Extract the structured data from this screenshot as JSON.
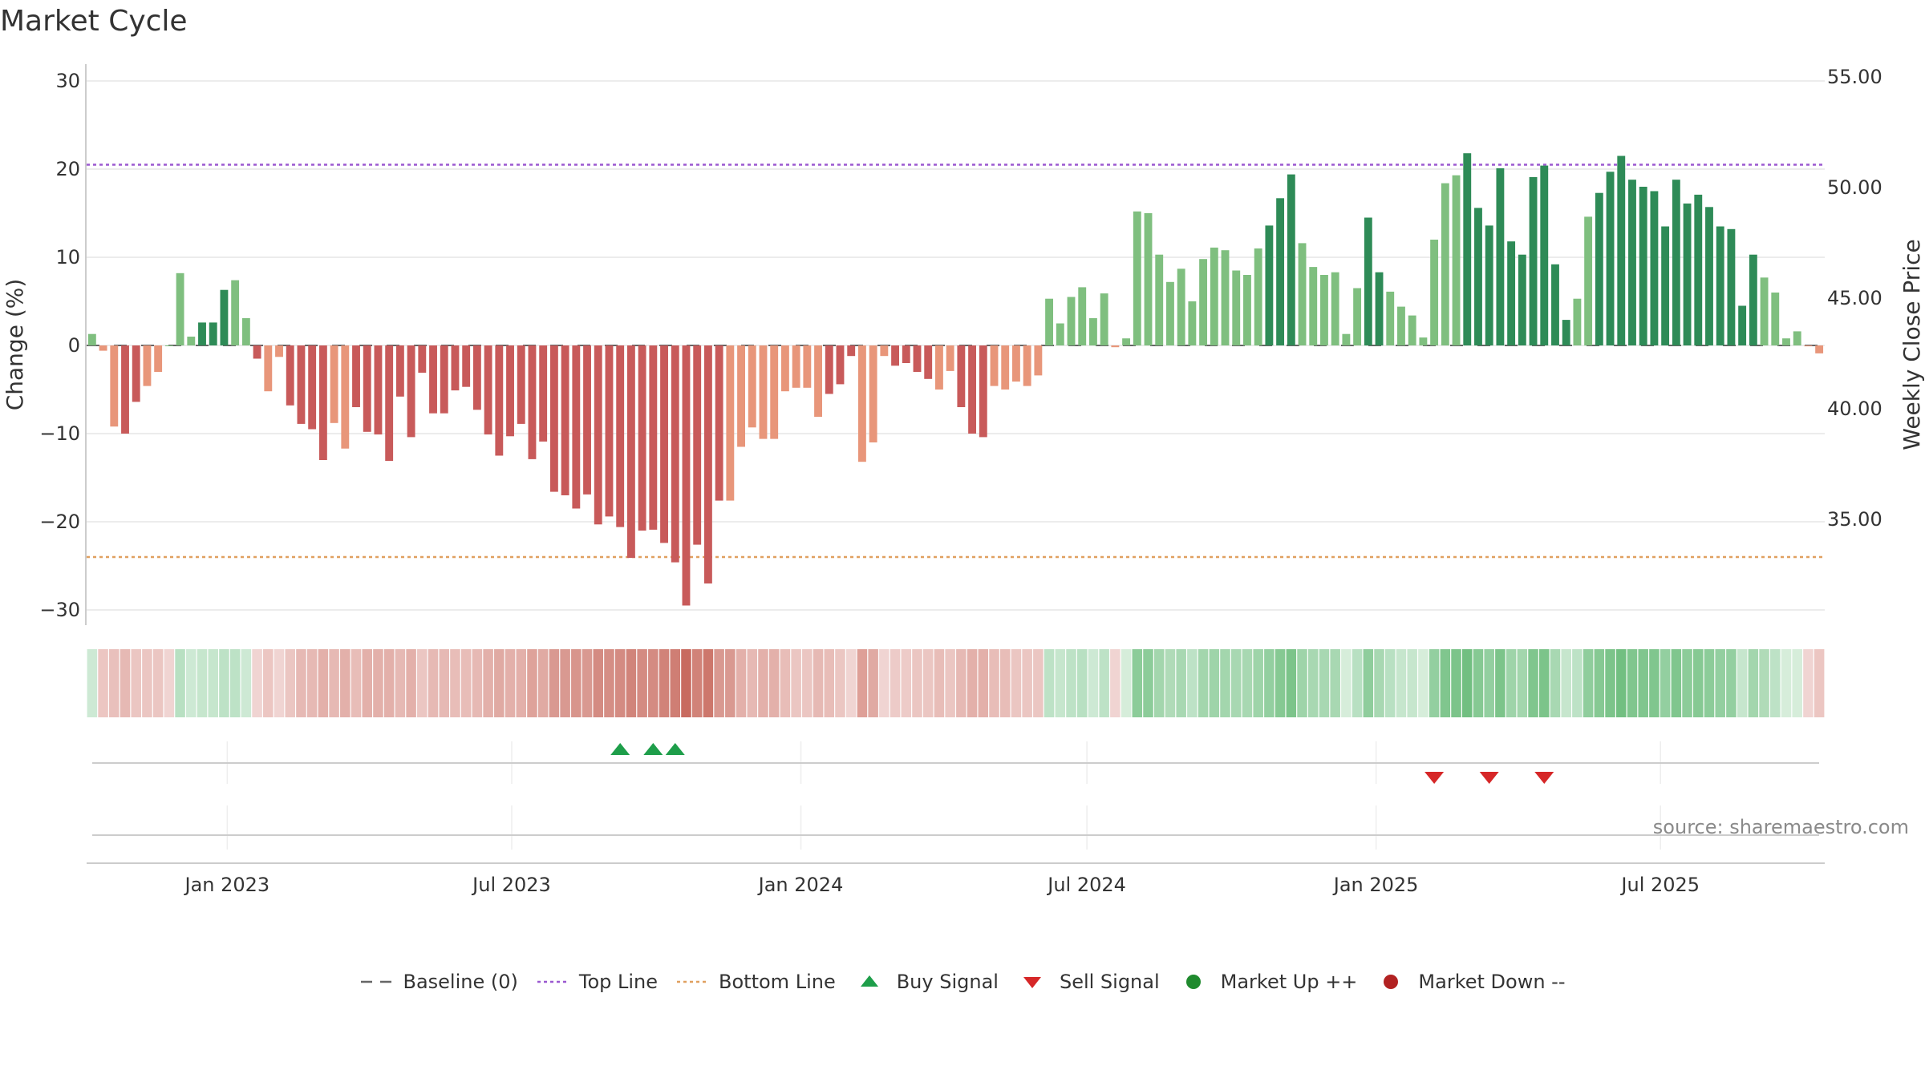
{
  "title": "Market Cycle",
  "source": "source: sharemaestro.com",
  "colors": {
    "up_strong": "#2e8b57",
    "up_light": "#7fbf7f",
    "down_strong": "#c85a5a",
    "down_light": "#e8967a",
    "top_line": "#9b59d0",
    "bottom_line": "#e0a060",
    "buy": "#1e9e4a",
    "sell": "#d62728",
    "market_up": "#1f8a2e",
    "market_down": "#b22222"
  },
  "legend": [
    {
      "label": "Baseline (0)",
      "symbol": "dash-grey"
    },
    {
      "label": "Top Line",
      "symbol": "dot-purple"
    },
    {
      "label": "Bottom Line",
      "symbol": "dot-orange"
    },
    {
      "label": "Buy Signal",
      "symbol": "triangle-up-green"
    },
    {
      "label": "Sell Signal",
      "symbol": "triangle-down-red"
    },
    {
      "label": "Market Up ++",
      "symbol": "circle-green"
    },
    {
      "label": "Market Down --",
      "symbol": "circle-red"
    }
  ],
  "chart_data": {
    "type": "bar",
    "x_start": "2022-10-07",
    "x_step": "weekly",
    "x_ticks": [
      "Jan 2023",
      "Jul 2023",
      "Jan 2024",
      "Jul 2024",
      "Jan 2025",
      "Jul 2025"
    ],
    "ylabel": "Change (%)",
    "y2label": "Weekly Close Price",
    "ylim": [
      -31,
      32
    ],
    "yticks": [
      30,
      20,
      10,
      0,
      -10,
      -20,
      -30
    ],
    "y2ticks": [
      "55.00",
      "50.00",
      "45.00",
      "40.00",
      "35.00"
    ],
    "top_line": 20.5,
    "bottom_line": -24,
    "baseline": 0,
    "values": [
      1.3,
      -0.6,
      -9.2,
      -10,
      -6.4,
      -4.6,
      -3,
      0,
      8.2,
      1,
      2.6,
      2.6,
      6.3,
      7.4,
      3.1,
      -1.5,
      -5.2,
      -1.3,
      -6.8,
      -8.9,
      -9.5,
      -13,
      -8.8,
      -11.7,
      -7,
      -9.8,
      -10.1,
      -13.1,
      -5.8,
      -10.4,
      -3.1,
      -7.7,
      -7.7,
      -5.1,
      -4.7,
      -7.3,
      -10.1,
      -12.5,
      -10.3,
      -8.9,
      -12.9,
      -10.9,
      -16.6,
      -17,
      -18.5,
      -16.9,
      -20.3,
      -19.4,
      -20.6,
      -24.1,
      -21,
      -20.9,
      -22.4,
      -24.6,
      -29.5,
      -22.6,
      -27,
      -17.6,
      -17.6,
      -11.5,
      -9.3,
      -10.6,
      -10.6,
      -5.2,
      -4.8,
      -4.8,
      -8.1,
      -5.5,
      -4.4,
      -1.2,
      -13.2,
      -11,
      -1.2,
      -2.3,
      -2,
      -3,
      -3.8,
      -5,
      -2.9,
      -7,
      -10,
      -10.4,
      -4.6,
      -5,
      -4.1,
      -4.6,
      -3.4,
      5.3,
      2.5,
      5.5,
      6.6,
      3.1,
      5.9,
      -0.2,
      0.8,
      15.2,
      15,
      10.3,
      7.2,
      8.7,
      5,
      9.8,
      11.1,
      10.8,
      8.5,
      8,
      11,
      13.6,
      16.7,
      19.4,
      11.6,
      8.9,
      8,
      8.3,
      1.3,
      6.5,
      14.5,
      8.3,
      6.1,
      4.4,
      3.4,
      0.9,
      12,
      18.4,
      19.3,
      21.8,
      15.6,
      13.6,
      20.1,
      11.8,
      10.3,
      19.1,
      20.4,
      9.2,
      2.9,
      5.3,
      14.6,
      17.3,
      19.7,
      21.5,
      18.8,
      18,
      17.5,
      13.5,
      18.8,
      16.1,
      17.1,
      15.7,
      13.5,
      13.2,
      4.5,
      10.3,
      7.7,
      6,
      0.8,
      1.6,
      -0.1,
      -0.9
    ],
    "shade": [
      2,
      2,
      2,
      3,
      3,
      2,
      2,
      2,
      2,
      2,
      3,
      3,
      3,
      2,
      2,
      3,
      2,
      2,
      3,
      3,
      3,
      3,
      2,
      2,
      3,
      3,
      3,
      3,
      3,
      3,
      3,
      3,
      3,
      3,
      3,
      3,
      3,
      3,
      3,
      3,
      3,
      3,
      3,
      3,
      3,
      3,
      3,
      3,
      3,
      3,
      3,
      3,
      3,
      3,
      3,
      3,
      3,
      3,
      2,
      2,
      2,
      2,
      2,
      2,
      2,
      2,
      2,
      3,
      3,
      3,
      2,
      2,
      2,
      3,
      3,
      3,
      3,
      2,
      2,
      3,
      3,
      3,
      2,
      2,
      2,
      2,
      2,
      2,
      2,
      2,
      2,
      2,
      2,
      2,
      2,
      2,
      2,
      2,
      2,
      2,
      2,
      2,
      2,
      2,
      2,
      2,
      2,
      3,
      3,
      3,
      2,
      2,
      2,
      2,
      2,
      2,
      3,
      3,
      2,
      2,
      2,
      2,
      2,
      2,
      2,
      3,
      3,
      3,
      3,
      3,
      3,
      3,
      3,
      3,
      3,
      2,
      2,
      3,
      3,
      3,
      3,
      3,
      3,
      3,
      3,
      3,
      3,
      3,
      3,
      3,
      3,
      3,
      2,
      2,
      2,
      2,
      2,
      2,
      2,
      2,
      2,
      2,
      2
    ],
    "buy_signal_x": [
      "2023-09-08",
      "2023-09-29",
      "2023-10-13"
    ],
    "sell_signal_x": [
      "2025-02-07",
      "2025-03-14",
      "2025-04-18"
    ],
    "strip_colors": [
      "#cde9d4",
      "#ecc6c2",
      "#e9c0bc",
      "#e6b9b4",
      "#ebc6c2",
      "#ebc6c2",
      "#ebc6c2",
      "#f0d4d2",
      "#b8e0c2",
      "#cde9d4",
      "#c6e6cd",
      "#c6e6cd",
      "#bde2c6",
      "#bde2c6",
      "#cde9d4",
      "#f0d4d2",
      "#ecc6c2",
      "#f0d4d2",
      "#ebc6c2",
      "#e6b9b4",
      "#e6b9b4",
      "#e3b0aa",
      "#e6b9b4",
      "#e3b0aa",
      "#e8bdb8",
      "#e3b0aa",
      "#e3b0aa",
      "#e3b0aa",
      "#e6b9b4",
      "#e3b0aa",
      "#ebc6c2",
      "#e6b9b4",
      "#e6b9b4",
      "#e8bdb8",
      "#e8bdb8",
      "#e6b9b4",
      "#e3b0aa",
      "#e0aaa3",
      "#e3b0aa",
      "#e3b0aa",
      "#dea29a",
      "#e0aaa3",
      "#d99991",
      "#d99991",
      "#d8958c",
      "#d99991",
      "#d48b82",
      "#d58e85",
      "#d48b82",
      "#d1847a",
      "#d48b82",
      "#d48b82",
      "#d18379",
      "#cf7e74",
      "#c86a5f",
      "#d18379",
      "#cd776c",
      "#d99991",
      "#d99991",
      "#e3b0aa",
      "#e6b9b4",
      "#e3b0aa",
      "#e3b0aa",
      "#e8bdb8",
      "#ebc6c2",
      "#ebc6c2",
      "#e6b9b4",
      "#e8bdb8",
      "#ebc6c2",
      "#f0d4d2",
      "#de9f97",
      "#e0aaa3",
      "#f0d4d2",
      "#edcbc8",
      "#edcbc8",
      "#ebc6c2",
      "#ebc6c2",
      "#e8bdb8",
      "#ebc6c2",
      "#e6b9b4",
      "#e3b0aa",
      "#e3b0aa",
      "#e8bdb8",
      "#e8bdb8",
      "#ebc6c2",
      "#ebc6c2",
      "#ebc6c2",
      "#bde2c6",
      "#c6e6cd",
      "#bde2c6",
      "#b8e0c2",
      "#cde9d4",
      "#bde2c6",
      "#f0d4d2",
      "#d6edda",
      "#8ccc99",
      "#8ccc99",
      "#a3d6ad",
      "#b0dbb8",
      "#a8d8b2",
      "#bde2c6",
      "#a3d6ad",
      "#9ed4a9",
      "#a3d6ad",
      "#a8d8b2",
      "#a8d8b2",
      "#9ed4a9",
      "#93cfa0",
      "#86c993",
      "#7cc48a",
      "#9ed4a9",
      "#a8d8b2",
      "#a8d8b2",
      "#a8d8b2",
      "#d6edda",
      "#b8e0c2",
      "#8fcd9c",
      "#a8d8b2",
      "#b8e0c2",
      "#c6e6cd",
      "#c6e6cd",
      "#d6edda",
      "#93cfa0",
      "#80c68e",
      "#7cc48a",
      "#72bf81",
      "#86c993",
      "#93cfa0",
      "#7cc48a",
      "#9ed4a9",
      "#a3d6ad",
      "#80c68e",
      "#7cc48a",
      "#a8d8b2",
      "#c6e6cd",
      "#bde2c6",
      "#8fcd9c",
      "#86c993",
      "#7cc48a",
      "#72bf81",
      "#80c68e",
      "#80c68e",
      "#80c68e",
      "#93cfa0",
      "#80c68e",
      "#8ccc99",
      "#86c993",
      "#8ccc99",
      "#93cfa0",
      "#93cfa0",
      "#c6e6cd",
      "#a3d6ad",
      "#b0dbb8",
      "#bde2c6",
      "#d6edda",
      "#d6edda",
      "#f0d4d2",
      "#ecc6c2"
    ]
  }
}
